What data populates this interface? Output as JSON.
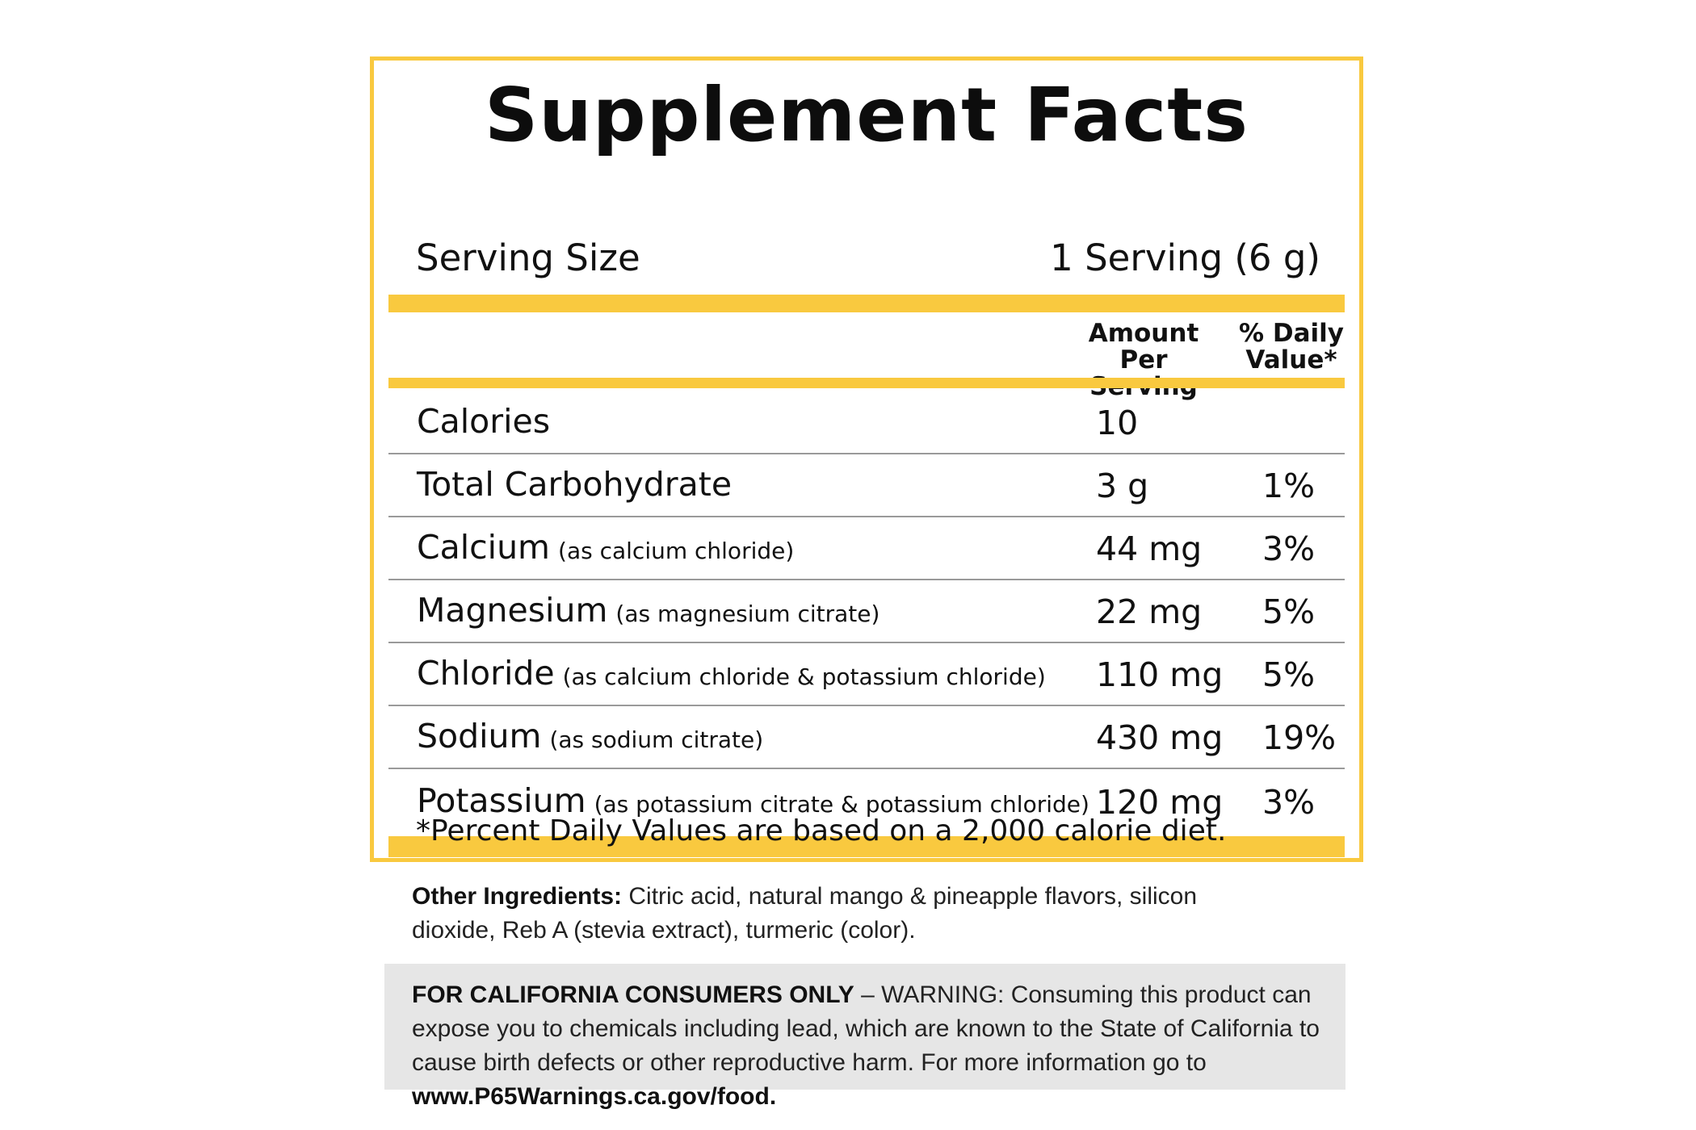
{
  "title": "Supplement Facts",
  "serving": {
    "label": "Serving Size",
    "value": "1 Serving (6 g)"
  },
  "columns": {
    "amount_line1": "Amount",
    "amount_line2": "Per Serving",
    "dv_line1": "% Daily",
    "dv_line2": "Value*"
  },
  "nutrients": [
    {
      "name": "Calories",
      "sub": "",
      "amount": "10",
      "dv": ""
    },
    {
      "name": "Total Carbohydrate",
      "sub": "",
      "amount": "3 g",
      "dv": "1%"
    },
    {
      "name": "Calcium",
      "sub": "(as calcium chloride)",
      "amount": "44 mg",
      "dv": "3%"
    },
    {
      "name": "Magnesium",
      "sub": "(as magnesium citrate)",
      "amount": "22 mg",
      "dv": "5%"
    },
    {
      "name": "Chloride",
      "sub": "(as calcium chloride & potassium chloride)",
      "amount": "110 mg",
      "dv": "5%"
    },
    {
      "name": "Sodium",
      "sub": "(as sodium citrate)",
      "amount": "430 mg",
      "dv": "19%"
    },
    {
      "name": "Potassium",
      "sub": "(as potassium citrate & potassium chloride)",
      "amount": "120 mg",
      "dv": "3%"
    }
  ],
  "footnote": "*Percent Daily Values are based on a 2,000 calorie diet.",
  "ingredients": {
    "label": "Other Ingredients:",
    "text": " Citric acid, natural mango & pineapple flavors, silicon dioxide, Reb A (stevia extract), turmeric (color)."
  },
  "warning": {
    "heading": "FOR CALIFORNIA CONSUMERS ONLY",
    "text": " – WARNING: Consuming this product can expose you to chemicals including lead, which are known to the State of California to cause birth defects or other reproductive harm. For more information go to ",
    "link": "www.P65Warnings.ca.gov/food."
  },
  "colors": {
    "accent": "#f9c93f",
    "warning_bg": "#e6e6e6",
    "rule": "#9a9a9a"
  }
}
